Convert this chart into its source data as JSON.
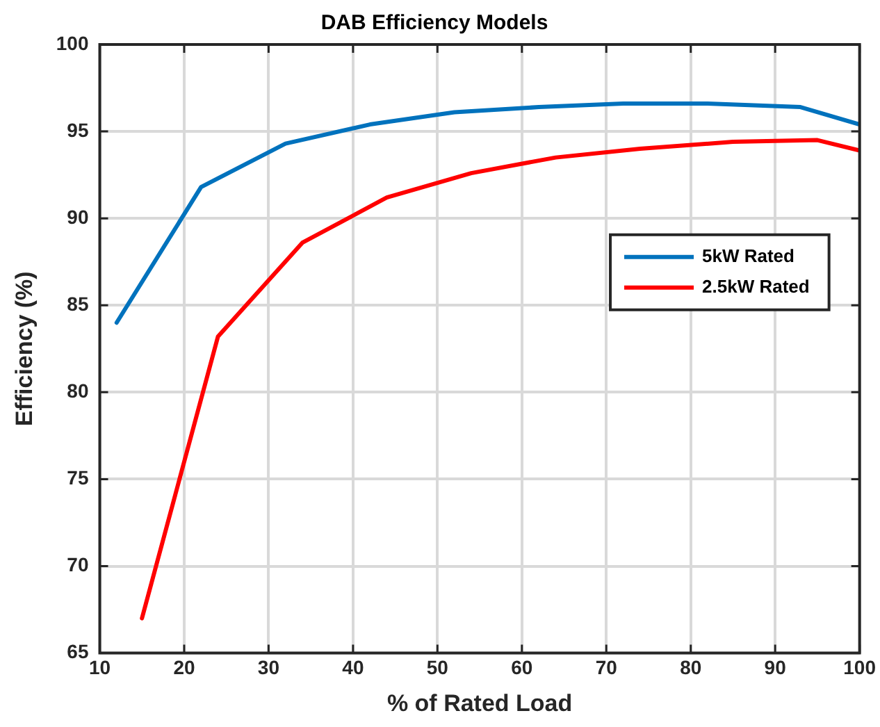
{
  "chart_data": {
    "type": "line",
    "title": "DAB Efficiency Models",
    "xlabel": "% of Rated Load",
    "ylabel": "Efficiency (%)",
    "xlim": [
      10,
      100
    ],
    "xticks": [
      10,
      20,
      30,
      40,
      50,
      60,
      70,
      80,
      90,
      100
    ],
    "ylim": [
      65,
      100
    ],
    "yticks": [
      65,
      70,
      75,
      80,
      85,
      90,
      95,
      100
    ],
    "grid": true,
    "legend": "right",
    "marker": "none",
    "line_style": "solid",
    "series": [
      {
        "name": "5kW Rated",
        "color": "#0072bd",
        "x": [
          12,
          22,
          32,
          42,
          52,
          62,
          72,
          82,
          93,
          100
        ],
        "values": [
          84,
          91.8,
          94.3,
          95.4,
          96.1,
          96.4,
          96.6,
          96.6,
          96.4,
          95.4
        ]
      },
      {
        "name": "2.5kW Rated",
        "color": "#ff0000",
        "x": [
          15,
          24,
          34,
          44,
          54,
          64,
          74,
          85,
          95,
          100
        ],
        "values": [
          67,
          83.2,
          88.6,
          91.2,
          92.6,
          93.5,
          94.0,
          94.4,
          94.5,
          93.9
        ]
      }
    ]
  }
}
